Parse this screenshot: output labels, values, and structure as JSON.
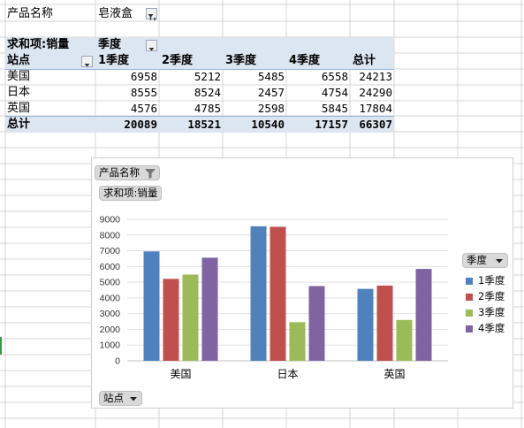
{
  "pivot": {
    "filter_label": "产品名称",
    "filter_value": "皂液盒",
    "value_field": "求和项:销量",
    "column_field": "季度",
    "row_field": "站点",
    "columns": [
      "1季度",
      "2季度",
      "3季度",
      "4季度",
      "总计"
    ],
    "rows": [
      {
        "name": "美国",
        "values": [
          "6958",
          "5212",
          "5485",
          "6558",
          "24213"
        ]
      },
      {
        "name": "日本",
        "values": [
          "8555",
          "8524",
          "2457",
          "4754",
          "24290"
        ]
      },
      {
        "name": "英国",
        "values": [
          "4576",
          "4785",
          "2598",
          "5845",
          "17804"
        ]
      }
    ],
    "total": {
      "name": "总计",
      "values": [
        "20089",
        "18521",
        "10540",
        "17157",
        "66307"
      ]
    }
  },
  "chart": {
    "filter_button": "产品名称",
    "value_button": "求和项:销量",
    "legend_button": "季度",
    "axis_button": "站点"
  },
  "chart_data": {
    "type": "bar",
    "categories": [
      "美国",
      "日本",
      "英国"
    ],
    "series": [
      {
        "name": "1季度",
        "values": [
          6958,
          8555,
          4576
        ],
        "color": "#4f81bd"
      },
      {
        "name": "2季度",
        "values": [
          5212,
          8524,
          4785
        ],
        "color": "#c0504d"
      },
      {
        "name": "3季度",
        "values": [
          5485,
          2457,
          2598
        ],
        "color": "#9bbb59"
      },
      {
        "name": "4季度",
        "values": [
          6558,
          4754,
          5845
        ],
        "color": "#8064a2"
      }
    ],
    "ylim": [
      0,
      9000
    ],
    "yticks": [
      "0",
      "1000",
      "2000",
      "3000",
      "4000",
      "5000",
      "6000",
      "7000",
      "8000",
      "9000"
    ],
    "grid": true,
    "legend": "right"
  },
  "colors": {
    "header_band": "#dce6f1",
    "grid_line": "#d4d4d4"
  }
}
